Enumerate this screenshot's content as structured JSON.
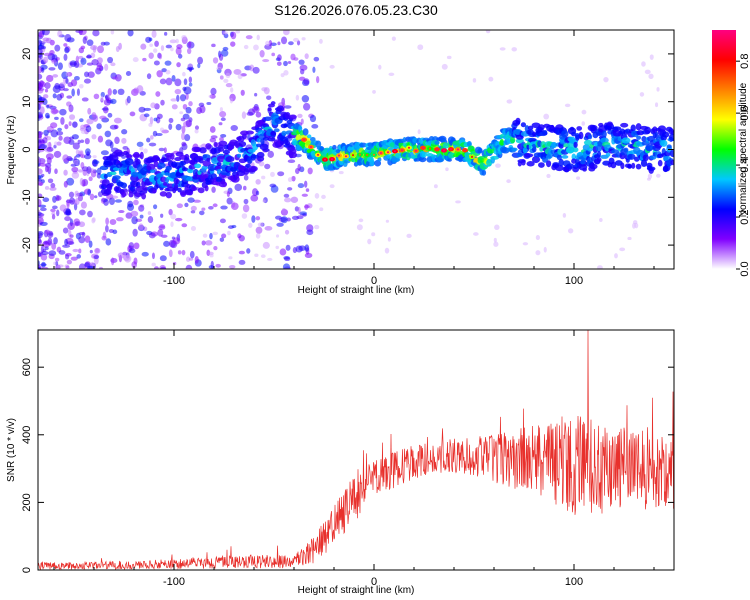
{
  "title": "S126.2026.076.05.23.C30",
  "colors": {
    "series": "#e8302c",
    "axis": "#000000"
  },
  "chart_data": [
    {
      "type": "heatmap",
      "xlabel": "Height of straight line (km)",
      "ylabel": "Frequency (Hz)",
      "xlim": [
        -168,
        150
      ],
      "ylim": [
        -25,
        25
      ],
      "xticks": [
        -100,
        0,
        100
      ],
      "yticks": [
        -20,
        -10,
        0,
        10,
        20
      ],
      "colorbar": {
        "label": "Normalized spectral amplitude",
        "range": [
          0.0,
          0.92
        ],
        "ticks": [
          0.0,
          0.2,
          0.4,
          0.6,
          0.8
        ],
        "tick_labels": [
          "0.0",
          "0.2",
          "0.4",
          "0.6",
          "0.8"
        ],
        "colormap": [
          "#ffffff",
          "#8000ff",
          "#0000ff",
          "#00c8ff",
          "#00ff00",
          "#ffff00",
          "#ff8000",
          "#ff0000",
          "#ff0080"
        ]
      },
      "ridge": [
        {
          "x": -125,
          "y": -5
        },
        {
          "x": -110,
          "y": -6
        },
        {
          "x": -95,
          "y": -5
        },
        {
          "x": -85,
          "y": -4
        },
        {
          "x": -75,
          "y": -3
        },
        {
          "x": -60,
          "y": 0
        },
        {
          "x": -50,
          "y": 6
        },
        {
          "x": -45,
          "y": 4
        },
        {
          "x": -35,
          "y": 2
        },
        {
          "x": -25,
          "y": -2
        },
        {
          "x": -10,
          "y": -1
        },
        {
          "x": 0,
          "y": -1
        },
        {
          "x": 15,
          "y": 0
        },
        {
          "x": 30,
          "y": 0
        },
        {
          "x": 45,
          "y": 0
        },
        {
          "x": 55,
          "y": -3
        },
        {
          "x": 65,
          "y": 2
        },
        {
          "x": 80,
          "y": 1
        },
        {
          "x": 100,
          "y": 0
        },
        {
          "x": 120,
          "y": 1
        },
        {
          "x": 140,
          "y": 0
        }
      ]
    },
    {
      "type": "line",
      "xlabel": "Height of straight line (km)",
      "ylabel": "SNR (10 * v/v)",
      "xlim": [
        -168,
        150
      ],
      "ylim": [
        0,
        710
      ],
      "xticks": [
        -100,
        0,
        100
      ],
      "yticks": [
        0,
        200,
        400,
        600
      ],
      "series": [
        {
          "name": "SNR",
          "envelope": [
            {
              "x": -168,
              "mean": 12,
              "spread": 10
            },
            {
              "x": -120,
              "mean": 14,
              "spread": 12
            },
            {
              "x": -80,
              "mean": 22,
              "spread": 18
            },
            {
              "x": -60,
              "mean": 25,
              "spread": 20
            },
            {
              "x": -40,
              "mean": 25,
              "spread": 20
            },
            {
              "x": -30,
              "mean": 60,
              "spread": 40
            },
            {
              "x": -20,
              "mean": 130,
              "spread": 60
            },
            {
              "x": -10,
              "mean": 210,
              "spread": 70
            },
            {
              "x": 0,
              "mean": 270,
              "spread": 60
            },
            {
              "x": 20,
              "mean": 320,
              "spread": 50
            },
            {
              "x": 40,
              "mean": 340,
              "spread": 50
            },
            {
              "x": 60,
              "mean": 330,
              "spread": 70
            },
            {
              "x": 80,
              "mean": 320,
              "spread": 110
            },
            {
              "x": 100,
              "mean": 310,
              "spread": 150
            },
            {
              "x": 120,
              "mean": 300,
              "spread": 130
            },
            {
              "x": 150,
              "mean": 290,
              "spread": 110
            }
          ],
          "peak": {
            "x": 107,
            "y": 710
          }
        }
      ]
    }
  ]
}
